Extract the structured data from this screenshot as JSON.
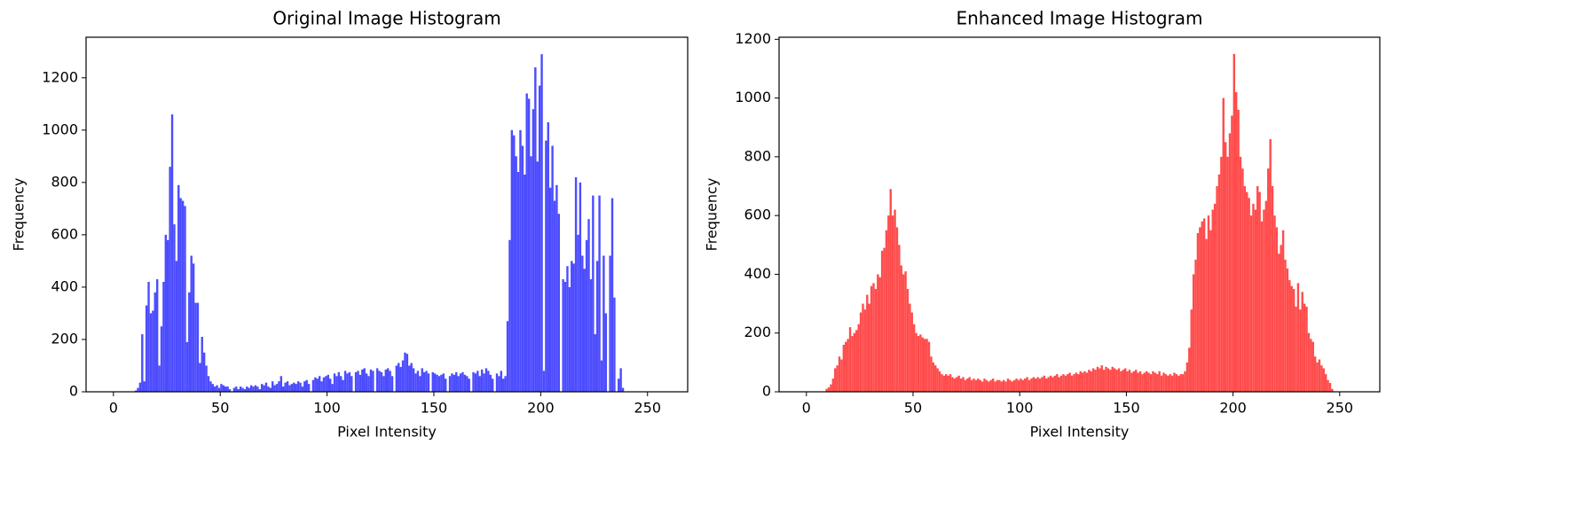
{
  "chart_data": [
    {
      "type": "histogram",
      "title": "Original Image Histogram",
      "xlabel": "Pixel Intensity",
      "ylabel": "Frequency",
      "color": "#4c4cff",
      "bins": [
        0,
        1,
        2,
        3,
        4,
        5,
        6,
        7,
        8,
        9,
        10,
        11,
        12,
        13,
        14,
        15,
        16,
        17,
        18,
        19,
        20,
        21,
        22,
        23,
        24,
        25,
        26,
        27,
        28,
        29,
        30,
        31,
        32,
        33,
        34,
        35,
        36,
        37,
        38,
        39,
        40,
        41,
        42,
        43,
        44,
        45,
        46,
        47,
        48,
        49,
        50,
        51,
        52,
        53,
        54,
        55,
        56,
        57,
        58,
        59,
        60,
        61,
        62,
        63,
        64,
        65,
        66,
        67,
        68,
        69,
        70,
        71,
        72,
        73,
        74,
        75,
        76,
        77,
        78,
        79,
        80,
        81,
        82,
        83,
        84,
        85,
        86,
        87,
        88,
        89,
        90,
        91,
        92,
        93,
        94,
        95,
        96,
        97,
        98,
        99,
        100,
        101,
        102,
        103,
        104,
        105,
        106,
        107,
        108,
        109,
        110,
        111,
        112,
        113,
        114,
        115,
        116,
        117,
        118,
        119,
        120,
        121,
        122,
        123,
        124,
        125,
        126,
        127,
        128,
        129,
        130,
        131,
        132,
        133,
        134,
        135,
        136,
        137,
        138,
        139,
        140,
        141,
        142,
        143,
        144,
        145,
        146,
        147,
        148,
        149,
        150,
        151,
        152,
        153,
        154,
        155,
        156,
        157,
        158,
        159,
        160,
        161,
        162,
        163,
        164,
        165,
        166,
        167,
        168,
        169,
        170,
        171,
        172,
        173,
        174,
        175,
        176,
        177,
        178,
        179,
        180,
        181,
        182,
        183,
        184,
        185,
        186,
        187,
        188,
        189,
        190,
        191,
        192,
        193,
        194,
        195,
        196,
        197,
        198,
        199,
        200,
        201,
        202,
        203,
        204,
        205,
        206,
        207,
        208,
        209,
        210,
        211,
        212,
        213,
        214,
        215,
        216,
        217,
        218,
        219,
        220,
        221,
        222,
        223,
        224,
        225,
        226,
        227,
        228,
        229,
        230,
        231,
        232,
        233,
        234,
        235,
        236,
        237,
        238,
        239,
        240,
        241,
        242,
        243,
        244,
        245,
        246,
        247,
        248,
        249,
        250,
        251,
        252,
        253,
        254,
        255,
        256
      ],
      "counts": [
        0,
        0,
        0,
        0,
        0,
        0,
        0,
        0,
        0,
        0,
        5,
        15,
        35,
        220,
        40,
        330,
        420,
        300,
        310,
        380,
        430,
        100,
        250,
        420,
        600,
        580,
        860,
        1060,
        640,
        500,
        790,
        740,
        730,
        710,
        190,
        380,
        520,
        490,
        340,
        340,
        110,
        210,
        150,
        100,
        60,
        40,
        30,
        20,
        25,
        15,
        30,
        25,
        20,
        20,
        10,
        0,
        15,
        20,
        10,
        20,
        15,
        10,
        20,
        15,
        25,
        20,
        25,
        20,
        10,
        30,
        25,
        35,
        20,
        15,
        40,
        25,
        30,
        40,
        60,
        20,
        35,
        40,
        25,
        30,
        35,
        30,
        40,
        35,
        20,
        40,
        45,
        30,
        0,
        45,
        55,
        50,
        60,
        40,
        55,
        60,
        65,
        50,
        30,
        70,
        60,
        75,
        60,
        45,
        80,
        70,
        75,
        60,
        0,
        75,
        80,
        65,
        85,
        90,
        70,
        60,
        85,
        80,
        0,
        90,
        80,
        75,
        60,
        85,
        90,
        80,
        60,
        0,
        100,
        110,
        95,
        120,
        150,
        145,
        100,
        110,
        90,
        70,
        80,
        60,
        90,
        75,
        80,
        70,
        0,
        75,
        70,
        65,
        60,
        65,
        70,
        50,
        0,
        60,
        70,
        65,
        75,
        60,
        70,
        75,
        65,
        60,
        50,
        0,
        75,
        70,
        80,
        60,
        85,
        70,
        90,
        80,
        65,
        50,
        0,
        70,
        60,
        80,
        50,
        60,
        270,
        580,
        1000,
        980,
        900,
        840,
        1000,
        940,
        830,
        1140,
        1120,
        900,
        1080,
        1240,
        880,
        1170,
        1290,
        80,
        960,
        1030,
        780,
        940,
        730,
        790,
        680,
        0,
        430,
        420,
        480,
        400,
        500,
        490,
        820,
        600,
        800,
        520,
        470,
        580,
        660,
        430,
        750,
        220,
        500,
        750,
        120,
        520,
        300,
        0,
        520,
        740,
        360,
        0,
        50,
        90,
        15,
        0,
        0,
        0,
        0,
        0,
        0,
        0,
        0,
        0,
        0,
        0,
        0,
        0,
        0,
        0,
        0,
        0
      ],
      "xlim": [
        -12.8,
        268.8
      ],
      "ylim": [
        0,
        1355
      ],
      "xticks": [
        0,
        50,
        100,
        150,
        200,
        250
      ],
      "yticks": [
        0,
        200,
        400,
        600,
        800,
        1000,
        1200
      ]
    },
    {
      "type": "histogram",
      "title": "Enhanced Image Histogram",
      "xlabel": "Pixel Intensity",
      "ylabel": "Frequency",
      "color": "#ff4c4c",
      "bins": [
        0,
        1,
        2,
        3,
        4,
        5,
        6,
        7,
        8,
        9,
        10,
        11,
        12,
        13,
        14,
        15,
        16,
        17,
        18,
        19,
        20,
        21,
        22,
        23,
        24,
        25,
        26,
        27,
        28,
        29,
        30,
        31,
        32,
        33,
        34,
        35,
        36,
        37,
        38,
        39,
        40,
        41,
        42,
        43,
        44,
        45,
        46,
        47,
        48,
        49,
        50,
        51,
        52,
        53,
        54,
        55,
        56,
        57,
        58,
        59,
        60,
        61,
        62,
        63,
        64,
        65,
        66,
        67,
        68,
        69,
        70,
        71,
        72,
        73,
        74,
        75,
        76,
        77,
        78,
        79,
        80,
        81,
        82,
        83,
        84,
        85,
        86,
        87,
        88,
        89,
        90,
        91,
        92,
        93,
        94,
        95,
        96,
        97,
        98,
        99,
        100,
        101,
        102,
        103,
        104,
        105,
        106,
        107,
        108,
        109,
        110,
        111,
        112,
        113,
        114,
        115,
        116,
        117,
        118,
        119,
        120,
        121,
        122,
        123,
        124,
        125,
        126,
        127,
        128,
        129,
        130,
        131,
        132,
        133,
        134,
        135,
        136,
        137,
        138,
        139,
        140,
        141,
        142,
        143,
        144,
        145,
        146,
        147,
        148,
        149,
        150,
        151,
        152,
        153,
        154,
        155,
        156,
        157,
        158,
        159,
        160,
        161,
        162,
        163,
        164,
        165,
        166,
        167,
        168,
        169,
        170,
        171,
        172,
        173,
        174,
        175,
        176,
        177,
        178,
        179,
        180,
        181,
        182,
        183,
        184,
        185,
        186,
        187,
        188,
        189,
        190,
        191,
        192,
        193,
        194,
        195,
        196,
        197,
        198,
        199,
        200,
        201,
        202,
        203,
        204,
        205,
        206,
        207,
        208,
        209,
        210,
        211,
        212,
        213,
        214,
        215,
        216,
        217,
        218,
        219,
        220,
        221,
        222,
        223,
        224,
        225,
        226,
        227,
        228,
        229,
        230,
        231,
        232,
        233,
        234,
        235,
        236,
        237,
        238,
        239,
        240,
        241,
        242,
        243,
        244,
        245,
        246,
        247,
        248,
        249,
        250,
        251,
        252,
        253,
        254,
        255,
        256
      ],
      "counts": [
        0,
        0,
        0,
        0,
        0,
        0,
        0,
        0,
        0,
        10,
        15,
        25,
        45,
        80,
        90,
        120,
        110,
        160,
        170,
        180,
        220,
        190,
        200,
        210,
        230,
        270,
        300,
        280,
        330,
        300,
        360,
        370,
        350,
        400,
        390,
        480,
        490,
        550,
        600,
        690,
        600,
        620,
        560,
        500,
        430,
        400,
        410,
        350,
        300,
        270,
        230,
        200,
        190,
        195,
        185,
        180,
        180,
        170,
        120,
        100,
        90,
        80,
        70,
        60,
        55,
        60,
        55,
        60,
        50,
        45,
        50,
        55,
        45,
        50,
        40,
        45,
        50,
        40,
        45,
        40,
        45,
        40,
        35,
        45,
        40,
        35,
        40,
        45,
        35,
        40,
        40,
        35,
        40,
        35,
        45,
        40,
        35,
        40,
        45,
        40,
        45,
        40,
        45,
        50,
        40,
        45,
        50,
        45,
        50,
        45,
        50,
        55,
        45,
        50,
        55,
        50,
        55,
        60,
        50,
        55,
        60,
        55,
        60,
        65,
        55,
        60,
        65,
        60,
        70,
        65,
        70,
        65,
        75,
        70,
        80,
        75,
        85,
        80,
        90,
        75,
        85,
        80,
        75,
        85,
        80,
        75,
        80,
        70,
        75,
        80,
        70,
        75,
        65,
        70,
        75,
        65,
        70,
        60,
        65,
        70,
        65,
        60,
        70,
        65,
        60,
        70,
        55,
        65,
        60,
        55,
        60,
        55,
        65,
        60,
        55,
        60,
        60,
        70,
        100,
        150,
        280,
        400,
        450,
        540,
        560,
        580,
        590,
        520,
        600,
        550,
        620,
        640,
        700,
        740,
        800,
        1000,
        850,
        800,
        880,
        940,
        1150,
        1020,
        960,
        800,
        760,
        700,
        680,
        660,
        600,
        640,
        620,
        700,
        680,
        580,
        620,
        650,
        760,
        860,
        700,
        600,
        560,
        470,
        500,
        550,
        450,
        420,
        380,
        360,
        350,
        290,
        370,
        280,
        340,
        300,
        290,
        200,
        180,
        170,
        120,
        100,
        110,
        90,
        80,
        60,
        40,
        30,
        10,
        0,
        0,
        0,
        0,
        0,
        0,
        0,
        0,
        0
      ],
      "xlim": [
        -12.8,
        268.8
      ],
      "ylim": [
        0,
        1207
      ],
      "xticks": [
        0,
        50,
        100,
        150,
        200,
        250
      ],
      "yticks": [
        0,
        200,
        400,
        600,
        800,
        1000,
        1200
      ]
    }
  ]
}
